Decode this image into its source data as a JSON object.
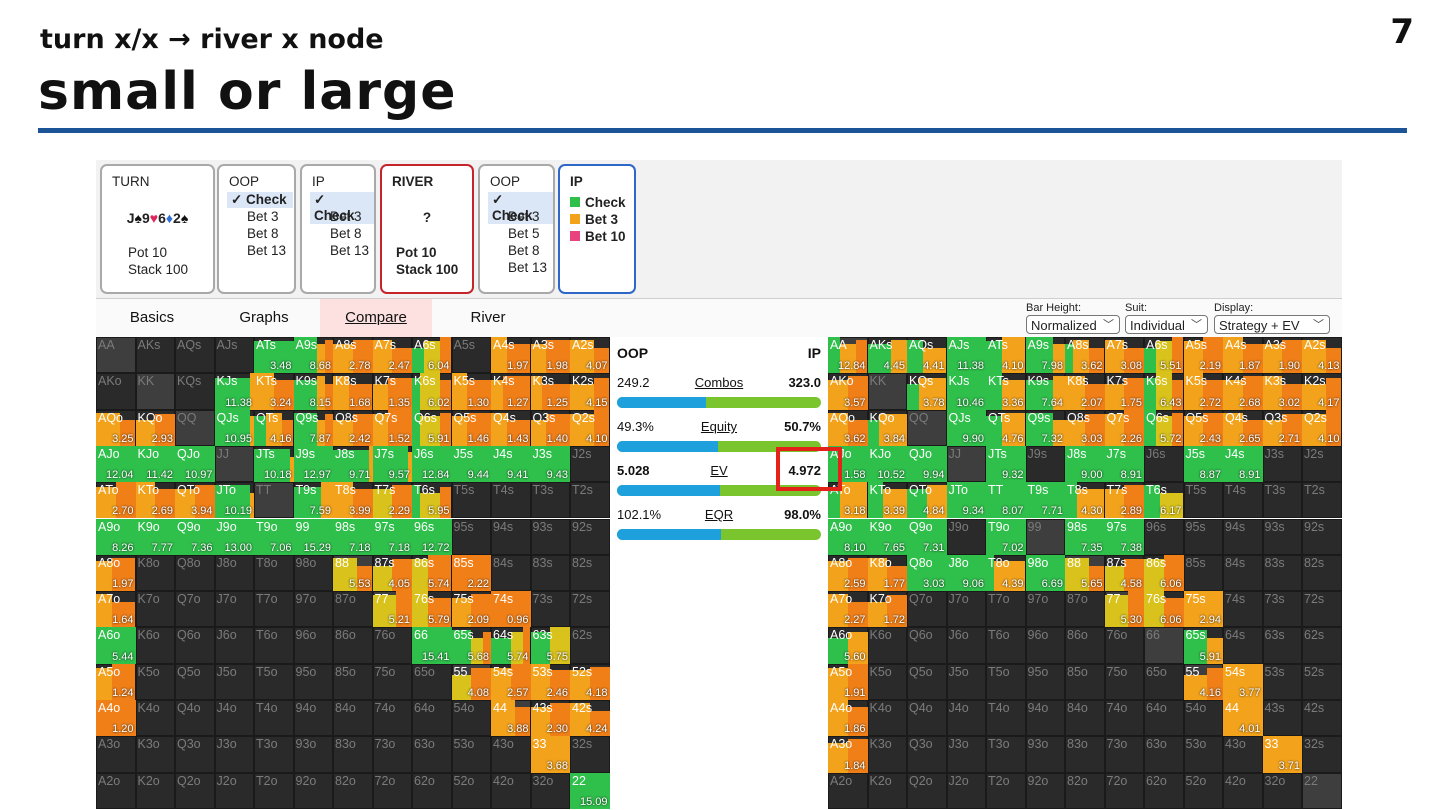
{
  "slide": {
    "subtitle": "turn x/x → river x node",
    "title": "small or large",
    "page_number": "7",
    "rule_color": "#1c5597"
  },
  "nodes": {
    "turn": {
      "header": "TURN",
      "cards": [
        {
          "rank": "J",
          "suit": "♠",
          "color": "#111111"
        },
        {
          "rank": "9",
          "suit": "♥",
          "color": "#e0245e"
        },
        {
          "rank": "6",
          "suit": "♦",
          "color": "#2f6fd6"
        },
        {
          "rank": "2",
          "suit": "♠",
          "color": "#111111"
        }
      ],
      "pot": "Pot 10",
      "stack": "Stack 100"
    },
    "oop1": {
      "header": "OOP",
      "options": [
        "Check",
        "Bet 3",
        "Bet 8",
        "Bet 13"
      ],
      "selected": 0
    },
    "ip1": {
      "header": "IP",
      "options": [
        "Check",
        "Bet 3",
        "Bet 8",
        "Bet 13"
      ],
      "selected": 0
    },
    "river": {
      "header": "RIVER",
      "card": "?",
      "pot": "Pot 10",
      "stack": "Stack 100"
    },
    "oop2": {
      "header": "OOP",
      "options": [
        "Check",
        "Bet 3",
        "Bet 5",
        "Bet 8",
        "Bet 13"
      ],
      "selected": 0
    },
    "ip2": {
      "header": "IP",
      "legend": [
        {
          "label": "Check",
          "color": "#2fbf4b"
        },
        {
          "label": "Bet 3",
          "color": "#f3a21b"
        },
        {
          "label": "Bet 10",
          "color": "#e8437e"
        }
      ]
    }
  },
  "check_mark": "✓",
  "tabs": [
    "Basics",
    "Graphs",
    "Compare",
    "River"
  ],
  "active_tab": 2,
  "controls": [
    {
      "label": "Bar Height:",
      "value": "Normalized"
    },
    {
      "label": "Suit:",
      "value": "Individual"
    },
    {
      "label": "Display:",
      "value": "Strategy + EV"
    }
  ],
  "chevron": "﹀",
  "compare": {
    "left_player": "OOP",
    "right_player": "IP",
    "rows": [
      {
        "name": "Combos",
        "left": "249.2",
        "right": "323.0",
        "left_share": 0.436
      },
      {
        "name": "Equity",
        "left": "49.3%",
        "right": "50.7%",
        "left_share": 0.493
      },
      {
        "name": "EV",
        "left": "5.028",
        "right": "4.972",
        "left_share": 0.503
      },
      {
        "name": "EQR",
        "left": "102.1%",
        "right": "98.0%",
        "left_share": 0.51
      }
    ],
    "bar_colors": {
      "left": "#1ea0dc",
      "right": "#7ac52e"
    }
  },
  "colors": {
    "check": "#2fbf4b",
    "small": "#f3a21b",
    "mid": "#d9c21b",
    "large": "#f07f18",
    "empty": "#2a2a2a"
  },
  "oop_grid": [
    [
      "AA|",
      "AKs|",
      "AQs|",
      "AJs|",
      "ATs|3.48|c.1,s.5,l.4",
      "A9s|8.68|c.6,s.2,l.2",
      "A8s|2.78|s.5,l.5",
      "A7s|2.47|s.5,l.5",
      "A6s|6.04|c.3,m.4,l.3",
      "A5s|",
      "A4s|1.97|s.4,l.6",
      "A3s|1.98|s.4,l.6",
      "A2s|4.07|s.6,l.4"
    ],
    [
      "AKo|",
      "KK|",
      "KQs|",
      "KJs|11.38|c.9,s.1",
      "KTs|3.24|s.5,l.5",
      "K9s|8.15|c.6,s.2,l.2",
      "K8s|1.68|s.4,l.6",
      "K7s|1.35|s.4,l.6",
      "K6s|6.02|c.2,m.5,l.3",
      "K5s|1.30|s.4,l.6",
      "K4s|1.27|s.3,l.7",
      "K3s|1.25|s.3,l.7",
      "K2s|4.15|s.6,l.4"
    ],
    [
      "AQo|3.25|s.6,l.4",
      "KQo|2.93|s.5,l.5",
      "QQ|",
      "QJs|10.95|c.9,s.1",
      "QTs|4.16|c.3,s.4,l.3",
      "Q9s|7.87|c.6,s.2,l.2",
      "Q8s|2.42|s.5,l.5",
      "Q7s|1.52|s.4,l.6",
      "Q6s|5.91|c.2,m.5,l.3",
      "Q5s|1.46|s.4,l.6",
      "Q4s|1.43|s.4,l.6",
      "Q3s|1.40|s.4,l.6",
      "Q2s|4.10|s.6,l.4"
    ],
    [
      "AJo|12.04|c.1",
      "KJo|11.42|c.1",
      "QJo|10.97|c.1",
      "JJ|",
      "JTs|10.18|c.9,s.1",
      "J9s|12.97|c.1",
      "J8s|9.71|c.9,s.1",
      "J7s|9.57|c.9,s.1",
      "J6s|12.84|c.1",
      "J5s|9.44|c.1",
      "J4s|9.41|c.1",
      "J3s|9.43|c.1",
      "J2s|"
    ],
    [
      "ATo|2.70|s.5,l.5",
      "KTo|2.69|s.5,l.5",
      "QTo|3.94|s.5,l.5",
      "JTo|10.19|c.9,s.1",
      "TT|",
      "T9s|7.59|c.7,s.3",
      "T8s|3.99|s.5,l.5",
      "T7s|2.29|m.5,l.5",
      "T6s|5.95|c.2,m.5,l.3",
      "T5s|",
      "T4s|",
      "T3s|",
      "T2s|"
    ],
    [
      "A9o|8.26|c.1",
      "K9o|7.77|c.1",
      "Q9o|7.36|c.1",
      "J9o|13.00|c.1",
      "T9o|7.06|c.1",
      "99|15.29|c.1",
      "98s|7.18|c.1",
      "97s|7.18|c.1",
      "96s|12.72|c.1",
      "95s|",
      "94s|",
      "93s|",
      "92s|"
    ],
    [
      "A8o|1.97|s.4,l.6",
      "K8o|",
      "Q8o|",
      "J8o|",
      "T8o|",
      "98o|",
      "88|5.53|m.6,l.4",
      "87s|4.05|m.5,l.5",
      "86s|5.74|m.4,l.6",
      "85s|2.22|l.1",
      "84s|",
      "83s|",
      "82s|"
    ],
    [
      "A7o|1.64|s.4,l.6",
      "K7o|",
      "Q7o|",
      "J7o|",
      "T7o|",
      "97o|",
      "87o|",
      "77|5.21|m.6,l.4",
      "76s|5.79|m.4,l.6",
      "75s|2.09|s.5,l.5",
      "74s|0.96|l.1",
      "73s|",
      "72s|"
    ],
    [
      "A6o|5.44|c.1",
      "K6o|",
      "Q6o|",
      "J6o|",
      "T6o|",
      "96o|",
      "86o|",
      "76o|",
      "66|15.41|c.1",
      "65s|5.68|c.5,m.3,l.2",
      "64s|5.74|c.5,m.3,l.2",
      "63s|5.75|c.5,m.5",
      "62s|"
    ],
    [
      "A5o|1.24|s.4,l.6",
      "K5o|",
      "Q5o|",
      "J5o|",
      "T5o|",
      "95o|",
      "85o|",
      "75o|",
      "65o|",
      "55|4.08|m.5,l.5",
      "54s|2.57|s.5,l.5",
      "53s|2.46|s.5,l.5",
      "52s|4.18|s.5,l.5"
    ],
    [
      "A4o|1.20|l.1",
      "K4o|",
      "Q4o|",
      "J4o|",
      "T4o|",
      "94o|",
      "84o|",
      "74o|",
      "64o|",
      "54o|",
      "44|3.88|s.6,l.4",
      "43s|2.30|s.5,l.5",
      "42s|4.24|s.5,l.5"
    ],
    [
      "A3o|",
      "K3o|",
      "Q3o|",
      "J3o|",
      "T3o|",
      "93o|",
      "83o|",
      "73o|",
      "63o|",
      "53o|",
      "43o|",
      "33|3.68|s.1",
      "32s|"
    ],
    [
      "A2o|",
      "K2o|",
      "Q2o|",
      "J2o|",
      "T2o|",
      "92o|",
      "82o|",
      "72o|",
      "62o|",
      "52o|",
      "42o|",
      "32o|",
      "22|15.09|c.1"
    ]
  ],
  "ip_grid": [
    [
      "AA|12.84|c.3,s.4,l.3",
      "AKs|4.45|c.6,s.4",
      "AQs|4.41|c.4,s.6",
      "AJs|11.38|c.1",
      "ATs|4.10|c.4,s.6",
      "A9s|7.98|c.7,s.3",
      "A8s|3.62|c.2,s.4,l.4",
      "A7s|3.08|s.5,l.5",
      "A6s|5.51|c.3,m.4,l.3",
      "A5s|2.19|s.5,l.5",
      "A4s|1.87|s.5,l.5",
      "A3s|1.90|s.5,l.5",
      "A2s|4.13|s.6,l.4"
    ],
    [
      "AKo|3.57|s.5,l.5",
      "KK|",
      "KQs|3.78|c.3,s.7",
      "KJs|10.46|c.1",
      "KTs|3.36|c.4,s.6",
      "K9s|7.64|c.7,s.3",
      "K8s|2.07|s.5,l.5",
      "K7s|1.75|s.5,l.5",
      "K6s|6.43|c.3,m.4,l.3",
      "K5s|2.72|s.5,l.5",
      "K4s|2.68|s.5,l.5",
      "K3s|3.02|s.5,l.5",
      "K2s|4.17|s.6,l.4"
    ],
    [
      "AQo|3.62|s.5,l.5",
      "KQo|3.84|c.3,s.7",
      "QQ|",
      "QJs|9.90|c.1",
      "QTs|4.76|c.4,s.6",
      "Q9s|7.32|c.7,s.3",
      "Q8s|3.03|s.5,l.5",
      "Q7s|2.26|s.5,l.5",
      "Q6s|5.72|c.3,m.4,l.3",
      "Q5s|2.43|s.5,l.5",
      "Q4s|2.65|s.5,l.5",
      "Q3s|2.71|s.5,l.5",
      "Q2s|4.10|s.6,l.4"
    ],
    [
      "AJo|1.58|c.1",
      "KJo|10.52|c.1",
      "QJo|9.94|c.1",
      "JJ|",
      "JTs|9.32|c.1",
      "J9s|",
      "J8s|9.00|c.1",
      "J7s|8.91|c.1",
      "J6s|",
      "J5s|8.87|c.1",
      "J4s|8.91|c.1",
      "J3s|",
      "J2s|"
    ],
    [
      "ATo|3.18|c.3,s.7",
      "KTo|3.39|c.4,s.6",
      "QTo|4.84|c.5,s.5",
      "JTo|9.34|c.1",
      "TT|8.07|c.1",
      "T9s|7.71|c.1",
      "T8s|4.30|c.3,s.7",
      "T7s|2.89|s.5,l.5",
      "T6s|6.17|c.4,m.6",
      "T5s|",
      "T4s|",
      "T3s|",
      "T2s|"
    ],
    [
      "A9o|8.10|c.1",
      "K9o|7.65|c.1",
      "Q9o|7.31|c.1",
      "J9o|",
      "T9o|7.02|c.1",
      "99|",
      "98s|7.35|c.1",
      "97s|7.38|c.1",
      "96s|",
      "95s|",
      "94s|",
      "93s|",
      "92s|"
    ],
    [
      "A8o|2.59|s.5,l.5",
      "K8o|1.77|s.5,l.5",
      "Q8o|3.03|c.1",
      "J8o|9.06|c.1",
      "T8o|4.39|c.2,s.8",
      "98o|6.69|c.1",
      "88|5.65|m.6,l.4",
      "87s|4.58|m.5,l.5",
      "86s|6.06|m.5,l.5",
      "85s|",
      "84s|",
      "83s|",
      "82s|"
    ],
    [
      "A7o|2.27|s.5,l.5",
      "K7o|1.72|s.5,l.5",
      "Q7o|",
      "J7o|",
      "T7o|",
      "97o|",
      "87o|",
      "77|5.30|m.6,l.4",
      "76s|6.06|m.5,l.5",
      "75s|2.94|s.1",
      "74s|",
      "73s|",
      "72s|"
    ],
    [
      "A6o|5.60|c.5,s.5",
      "K6o|",
      "Q6o|",
      "J6o|",
      "T6o|",
      "96o|",
      "86o|",
      "76o|",
      "66|",
      "65s|5.91|c.6,s.4",
      "64s|",
      "63s|",
      "62s|"
    ],
    [
      "A5o|1.91|s.5,l.5",
      "K5o|",
      "Q5o|",
      "J5o|",
      "T5o|",
      "95o|",
      "85o|",
      "75o|",
      "65o|",
      "55|4.16|s.6,l.4",
      "54s|3.77|s.1",
      "53s|",
      "52s|"
    ],
    [
      "A4o|1.86|s.5,l.5",
      "K4o|",
      "Q4o|",
      "J4o|",
      "T4o|",
      "94o|",
      "84o|",
      "74o|",
      "64o|",
      "54o|",
      "44|4.01|s.1",
      "43s|",
      "42s|"
    ],
    [
      "A3o|1.84|s.5,l.5",
      "K3o|",
      "Q3o|",
      "J3o|",
      "T3o|",
      "93o|",
      "83o|",
      "73o|",
      "63o|",
      "53o|",
      "43o|",
      "33|3.71|s.1",
      "32s|"
    ],
    [
      "A2o|",
      "K2o|",
      "Q2o|",
      "J2o|",
      "T2o|",
      "92o|",
      "82o|",
      "72o|",
      "62o|",
      "52o|",
      "42o|",
      "32o|",
      "22|"
    ]
  ]
}
